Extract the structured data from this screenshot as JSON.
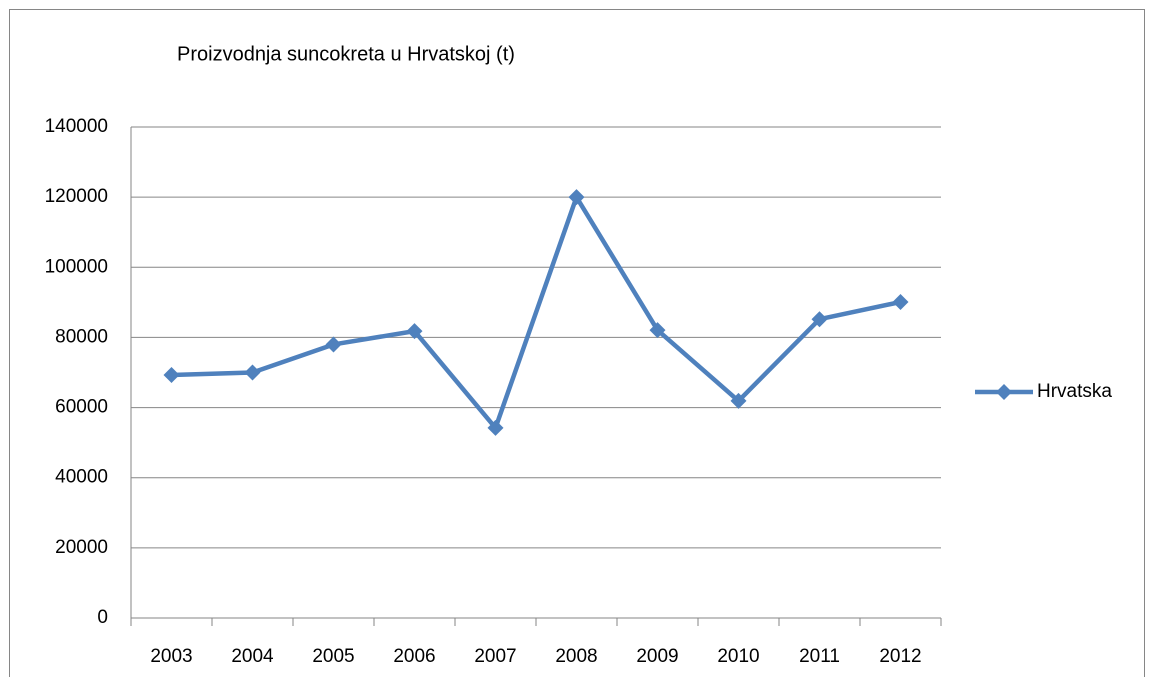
{
  "chart_data": {
    "type": "line",
    "title": "Proizvodnja suncokreta u  Hrvatskoj (t)",
    "categories": [
      "2003",
      "2004",
      "2005",
      "2006",
      "2007",
      "2008",
      "2009",
      "2010",
      "2011",
      "2012"
    ],
    "series": [
      {
        "name": "Hrvatska",
        "color": "#4f81bd",
        "values": [
          69300,
          70000,
          78000,
          81800,
          54200,
          120000,
          82100,
          61900,
          85200,
          90100
        ]
      }
    ],
    "ylim": [
      0,
      140000
    ],
    "yticks": [
      0,
      20000,
      40000,
      60000,
      80000,
      100000,
      120000,
      140000
    ],
    "grid": true,
    "legend": "right"
  }
}
